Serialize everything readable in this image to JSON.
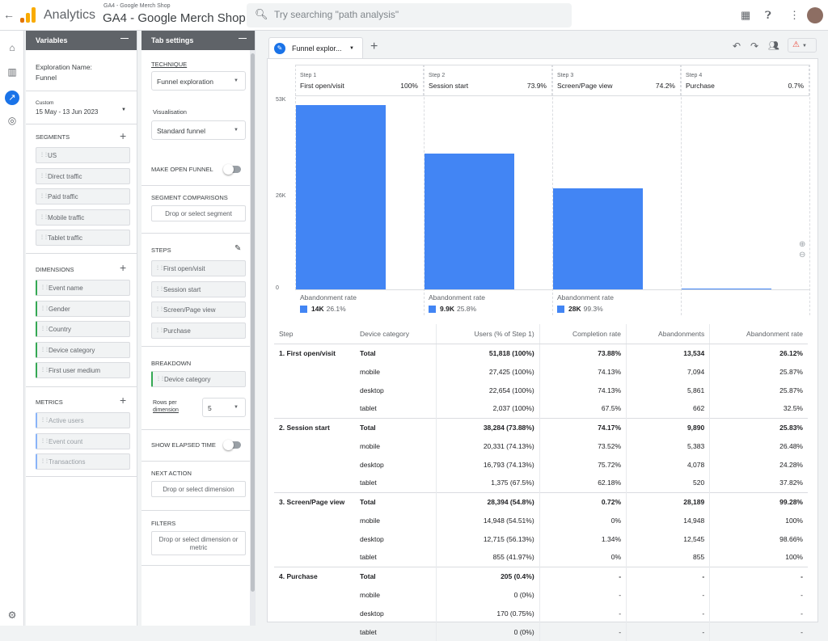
{
  "app": {
    "title": "Analytics",
    "property_sub": "GA4 - Google Merch Shop",
    "property": "GA4 - Google Merch Shop",
    "search_placeholder": "Try searching \"path analysis\""
  },
  "variables": {
    "header": "Variables",
    "exploration_label": "Exploration Name:",
    "exploration_name": "Funnel",
    "date_badge": "Custom",
    "date_range": "15 May - 13 Jun 2023",
    "segments_label": "SEGMENTS",
    "segments": [
      "US",
      "Direct traffic",
      "Paid traffic",
      "Mobile traffic",
      "Tablet traffic"
    ],
    "dimensions_label": "DIMENSIONS",
    "dimensions": [
      "Event name",
      "Gender",
      "Country",
      "Device category",
      "First user medium"
    ],
    "metrics_label": "METRICS",
    "metrics": [
      "Active users",
      "Event count",
      "Transactions"
    ]
  },
  "tab_settings": {
    "header": "Tab settings",
    "technique_label": "TECHNIQUE",
    "technique": "Funnel exploration",
    "visualisation_label": "Visualisation",
    "visualisation": "Standard funnel",
    "open_funnel_label": "MAKE OPEN FUNNEL",
    "segment_comparisons_label": "SEGMENT COMPARISONS",
    "segment_drop": "Drop or select segment",
    "steps_label": "STEPS",
    "steps": [
      "First open/visit",
      "Session start",
      "Screen/Page view",
      "Purchase"
    ],
    "breakdown_label": "BREAKDOWN",
    "breakdown": "Device category",
    "rows_label_1": "Rows per",
    "rows_label_2": "dimension",
    "rows_value": "5",
    "elapsed_label": "SHOW ELAPSED TIME",
    "next_action_label": "NEXT ACTION",
    "next_action_drop": "Drop or select dimension",
    "filters_label": "FILTERS",
    "filters_drop_1": "Drop or select dimension or",
    "filters_drop_2": "metric"
  },
  "tab": {
    "label": "Funnel explor..."
  },
  "chart_data": {
    "type": "bar",
    "categories": [
      "First open/visit",
      "Session start",
      "Screen/Page view",
      "Purchase"
    ],
    "step_numbers": [
      "Step 1",
      "Step 2",
      "Step 3",
      "Step 4"
    ],
    "step_percent": [
      "100%",
      "73.9%",
      "74.2%",
      "0.7%"
    ],
    "values": [
      51818,
      38284,
      28394,
      205
    ],
    "ylim": [
      0,
      53000
    ],
    "yticks": [
      "53K",
      "26K",
      "0"
    ],
    "abandonment_label": "Abandonment rate",
    "abandonment": [
      {
        "value": "14K",
        "rate": "26.1%"
      },
      {
        "value": "9.9K",
        "rate": "25.8%"
      },
      {
        "value": "28K",
        "rate": "99.3%"
      }
    ]
  },
  "table": {
    "headers": [
      "Step",
      "Device category",
      "Users (% of Step 1)",
      "Completion rate",
      "Abandonments",
      "Abandonment rate"
    ],
    "rows": [
      {
        "step": "1. First open/visit",
        "device": "Total",
        "users": "51,818 (100%)",
        "completion": "73.88%",
        "abandon": "13,534",
        "abandon_rate": "26.12%"
      },
      {
        "step": "",
        "device": "mobile",
        "users": "27,425 (100%)",
        "completion": "74.13%",
        "abandon": "7,094",
        "abandon_rate": "25.87%"
      },
      {
        "step": "",
        "device": "desktop",
        "users": "22,654 (100%)",
        "completion": "74.13%",
        "abandon": "5,861",
        "abandon_rate": "25.87%"
      },
      {
        "step": "",
        "device": "tablet",
        "users": "2,037 (100%)",
        "completion": "67.5%",
        "abandon": "662",
        "abandon_rate": "32.5%"
      },
      {
        "step": "2. Session start",
        "device": "Total",
        "users": "38,284 (73.88%)",
        "completion": "74.17%",
        "abandon": "9,890",
        "abandon_rate": "25.83%"
      },
      {
        "step": "",
        "device": "mobile",
        "users": "20,331 (74.13%)",
        "completion": "73.52%",
        "abandon": "5,383",
        "abandon_rate": "26.48%"
      },
      {
        "step": "",
        "device": "desktop",
        "users": "16,793 (74.13%)",
        "completion": "75.72%",
        "abandon": "4,078",
        "abandon_rate": "24.28%"
      },
      {
        "step": "",
        "device": "tablet",
        "users": "1,375 (67.5%)",
        "completion": "62.18%",
        "abandon": "520",
        "abandon_rate": "37.82%"
      },
      {
        "step": "3. Screen/Page view",
        "device": "Total",
        "users": "28,394 (54.8%)",
        "completion": "0.72%",
        "abandon": "28,189",
        "abandon_rate": "99.28%"
      },
      {
        "step": "",
        "device": "mobile",
        "users": "14,948 (54.51%)",
        "completion": "0%",
        "abandon": "14,948",
        "abandon_rate": "100%"
      },
      {
        "step": "",
        "device": "desktop",
        "users": "12,715 (56.13%)",
        "completion": "1.34%",
        "abandon": "12,545",
        "abandon_rate": "98.66%"
      },
      {
        "step": "",
        "device": "tablet",
        "users": "855 (41.97%)",
        "completion": "0%",
        "abandon": "855",
        "abandon_rate": "100%"
      },
      {
        "step": "4. Purchase",
        "device": "Total",
        "users": "205 (0.4%)",
        "completion": "-",
        "abandon": "-",
        "abandon_rate": "-"
      },
      {
        "step": "",
        "device": "mobile",
        "users": "0 (0%)",
        "completion": "-",
        "abandon": "-",
        "abandon_rate": "-"
      },
      {
        "step": "",
        "device": "desktop",
        "users": "170 (0.75%)",
        "completion": "-",
        "abandon": "-",
        "abandon_rate": "-"
      },
      {
        "step": "",
        "device": "tablet",
        "users": "0 (0%)",
        "completion": "-",
        "abandon": "-",
        "abandon_rate": "-"
      }
    ]
  },
  "colors": {
    "accent": "#1a73e8",
    "bar": "#4285f4",
    "warning": "#ea4335"
  }
}
